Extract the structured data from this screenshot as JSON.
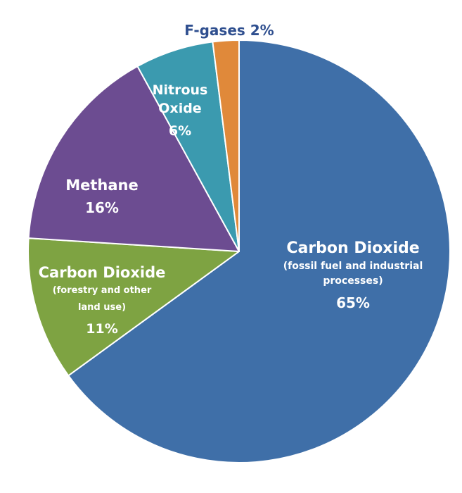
{
  "chart_data": {
    "type": "pie",
    "slices": [
      {
        "name": "Carbon Dioxide",
        "sublabel": "(fossil fuel and industrial processes)",
        "value": 65,
        "value_label": "65%",
        "color": "#3f6fa8"
      },
      {
        "name": "Carbon Dioxide",
        "sublabel": "(forestry and other land use)",
        "value": 11,
        "value_label": "11%",
        "color": "#7ea342"
      },
      {
        "name": "Methane",
        "sublabel": "",
        "value": 16,
        "value_label": "16%",
        "color": "#6c4c91"
      },
      {
        "name": "Nitrous Oxide",
        "sublabel": "",
        "value": 6,
        "value_label": "6%",
        "color": "#3b9aaf"
      },
      {
        "name": "F-gases",
        "sublabel": "",
        "value": 2,
        "value_label": "2%",
        "color": "#e0893a"
      }
    ],
    "outside_label": "F-gases 2%",
    "outside_label_color": "#2f4f8f",
    "start_angle_degrees": 0,
    "direction": "clockwise",
    "legend": "none"
  }
}
